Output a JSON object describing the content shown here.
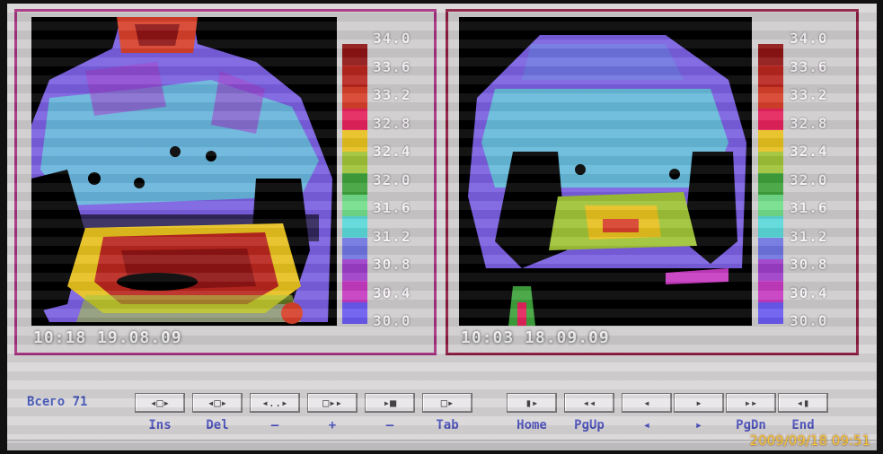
{
  "panels": [
    {
      "timestamp": "10:18 19.08.09",
      "scale_ticks": [
        "34.0",
        "33.6",
        "33.2",
        "32.8",
        "32.4",
        "32.0",
        "31.6",
        "31.2",
        "30.8",
        "30.4",
        "30.0"
      ]
    },
    {
      "timestamp": "10:03 18.09.09",
      "scale_ticks": [
        "34.0",
        "33.6",
        "33.2",
        "32.8",
        "32.4",
        "32.0",
        "31.6",
        "31.2",
        "30.8",
        "30.4",
        "30.0"
      ]
    }
  ],
  "scale_colors": [
    "#8e1414",
    "#b8261e",
    "#d6402a",
    "#e4235b",
    "#e6c01f",
    "#9ec236",
    "#3ea23b",
    "#73dd8a",
    "#5ad8d8",
    "#6f74e0",
    "#9c3dc8",
    "#c53ac0",
    "#6a5af0"
  ],
  "toolbar": {
    "total_label": "Всего 71",
    "buttons": [
      {
        "icon": "◂□▸",
        "key": "Ins"
      },
      {
        "icon": "◂□▸",
        "key": "Del"
      },
      {
        "icon": "◂..▸",
        "key": "–"
      },
      {
        "icon": "□▸▸",
        "key": "+"
      },
      {
        "icon": "▸■",
        "key": "–"
      },
      {
        "icon": "□▸",
        "key": "Tab"
      },
      {
        "icon": "▮▸",
        "key": "Home"
      },
      {
        "icon": "◂◂",
        "key": "PgUp"
      },
      {
        "icon": "◂",
        "key": "◂"
      },
      {
        "icon": "▸",
        "key": "▸"
      },
      {
        "icon": "▸▸",
        "key": "PgDn"
      },
      {
        "icon": "◂▮",
        "key": "End"
      }
    ]
  },
  "camera_datestamp": "2009/09/18 09:51"
}
